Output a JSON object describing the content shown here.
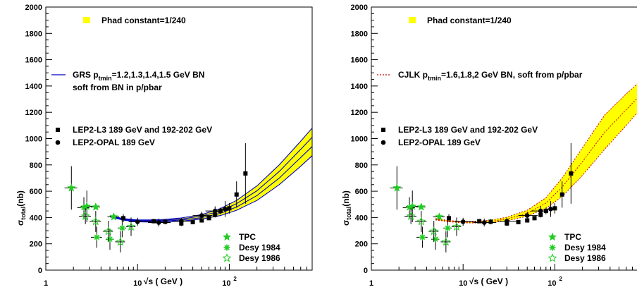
{
  "chart_data": [
    {
      "type": "scatter",
      "xscale": "log",
      "xlim": [
        1,
        800
      ],
      "ylim": [
        0,
        2000
      ],
      "xticks": [
        {
          "v": 1,
          "label": "1"
        },
        {
          "v": 10,
          "label": "10"
        },
        {
          "v": 100,
          "label": "10",
          "sup": "2"
        }
      ],
      "yticks": [
        0,
        200,
        400,
        600,
        800,
        1000,
        1200,
        1400,
        1600,
        1800,
        2000
      ],
      "xlabel": "√s ( GeV )",
      "ylabel": "σ",
      "ylabel_sub": "total",
      "ylabel_unit": "(nb)",
      "band": {
        "label": "Phad constant=1/240",
        "color": "#ffff00",
        "x": [
          5,
          7,
          10,
          15,
          20,
          30,
          50,
          80,
          120,
          200,
          350,
          600,
          800
        ],
        "lower": [
          405,
          380,
          368,
          365,
          367,
          372,
          388,
          415,
          455,
          530,
          650,
          790,
          870
        ],
        "upper": [
          415,
          392,
          382,
          382,
          386,
          397,
          422,
          468,
          530,
          640,
          800,
          980,
          1080
        ]
      },
      "model": {
        "label": "GRS p",
        "label_sub": "tmin",
        "label_rest": "=1.2,1.3,1.4,1.5 GeV BN",
        "label_line2": "soft from BN in p/pbar",
        "color": "#0000cc",
        "style": "solid",
        "x": [
          5,
          7,
          10,
          15,
          20,
          30,
          50,
          80,
          120,
          200,
          350,
          600,
          800
        ],
        "curves": [
          [
            405,
            380,
            368,
            365,
            367,
            372,
            388,
            415,
            455,
            530,
            650,
            790,
            870
          ],
          [
            408,
            384,
            373,
            371,
            374,
            381,
            399,
            432,
            480,
            567,
            700,
            856,
            940
          ],
          [
            412,
            388,
            377,
            376,
            380,
            389,
            411,
            450,
            505,
            603,
            750,
            918,
            1010
          ],
          [
            415,
            392,
            382,
            382,
            386,
            397,
            422,
            468,
            530,
            640,
            800,
            980,
            1080
          ]
        ]
      },
      "series": [
        {
          "name": "LEP2-L3 189 GeV and 192-202 GeV",
          "marker": "square",
          "color": "#000000",
          "x": [
            7,
            15,
            20,
            30,
            40,
            50,
            60,
            70,
            80,
            100,
            120,
            150
          ],
          "y": [
            395,
            372,
            368,
            355,
            365,
            378,
            395,
            420,
            450,
            470,
            575,
            735
          ],
          "yerr": [
            30,
            15,
            20,
            20,
            15,
            15,
            15,
            20,
            25,
            40,
            100,
            230
          ],
          "xerr_lo": [
            0,
            0,
            0,
            0,
            0,
            0,
            0,
            0,
            0,
            0,
            0,
            0
          ],
          "xerr_hi": [
            0,
            0,
            0,
            0,
            0,
            0,
            0,
            0,
            0,
            0,
            0,
            0
          ]
        },
        {
          "name": "LEP2-OPAL 189 GeV",
          "marker": "circle",
          "color": "#000000",
          "x": [
            10,
            17,
            30,
            50,
            70,
            90
          ],
          "y": [
            368,
            362,
            372,
            415,
            450,
            465
          ],
          "yerr": [
            30,
            30,
            25,
            30,
            35,
            60
          ],
          "xerr_lo": [
            2,
            4,
            6,
            10,
            15,
            10
          ],
          "xerr_hi": [
            4,
            6,
            10,
            15,
            15,
            10
          ]
        },
        {
          "name": "TPC",
          "marker": "star",
          "color": "#22cc22",
          "x": [
            1.9,
            2.8,
            3.5,
            5.5
          ],
          "y": [
            625,
            485,
            480,
            405
          ],
          "yerr": [
            165,
            120,
            0,
            0
          ],
          "xerr_lo": [
            0.3,
            0.4,
            0.4,
            0.8
          ],
          "xerr_hi": [
            0.3,
            0.4,
            0.4,
            0.8
          ]
        },
        {
          "name": "Desy 1984",
          "marker": "asterisk",
          "color": "#22cc22",
          "x": [
            2.6,
            3.6,
            5.0,
            6.8
          ],
          "y": [
            475,
            250,
            235,
            320
          ],
          "yerr": [
            80,
            80,
            80,
            70
          ],
          "xerr_lo": [
            0.4,
            0.5,
            0.5,
            0.7
          ],
          "xerr_hi": [
            0.4,
            0.5,
            0.5,
            0.7
          ]
        },
        {
          "name": "Desy 1986",
          "marker": "openstar",
          "color": "#22cc22",
          "x": [
            2.7,
            3.5,
            4.8,
            6.5,
            8.5
          ],
          "y": [
            410,
            370,
            295,
            215,
            330
          ],
          "yerr": [
            60,
            80,
            80,
            80,
            70
          ],
          "xerr_lo": [
            0.4,
            0.5,
            0.6,
            0.8,
            1.0
          ],
          "xerr_hi": [
            0.4,
            0.5,
            0.6,
            0.8,
            1.0
          ]
        }
      ]
    },
    {
      "type": "scatter",
      "xscale": "log",
      "xlim": [
        1,
        800
      ],
      "ylim": [
        0,
        2000
      ],
      "xticks": [
        {
          "v": 1,
          "label": "1"
        },
        {
          "v": 10,
          "label": "10"
        },
        {
          "v": 100,
          "label": "10",
          "sup": "2"
        }
      ],
      "yticks": [
        0,
        200,
        400,
        600,
        800,
        1000,
        1200,
        1400,
        1600,
        1800,
        2000
      ],
      "xlabel": "√s ( GeV )",
      "ylabel": "σ",
      "ylabel_sub": "total",
      "ylabel_unit": "(nb)",
      "band": {
        "label": "Phad constant=1/240",
        "color": "#ffff00",
        "x": [
          5,
          7,
          10,
          15,
          20,
          30,
          50,
          80,
          120,
          200,
          350,
          600,
          800
        ],
        "lower": [
          382,
          368,
          360,
          358,
          362,
          375,
          410,
          470,
          560,
          720,
          920,
          1100,
          1200
        ],
        "upper": [
          392,
          377,
          370,
          372,
          380,
          402,
          455,
          550,
          700,
          930,
          1180,
          1340,
          1420
        ]
      },
      "model": {
        "label": "CJLK p",
        "label_sub": "tmin",
        "label_rest": "=1.6,1.8,2 GeV BN, soft from p/pbar",
        "label_line2": "",
        "color": "#cc0000",
        "style": "dotted",
        "x": [
          5,
          7,
          10,
          15,
          20,
          30,
          50,
          80,
          120,
          200,
          350,
          600,
          800
        ],
        "curves": [
          [
            382,
            368,
            360,
            358,
            362,
            375,
            410,
            470,
            560,
            720,
            920,
            1100,
            1200
          ],
          [
            387,
            372,
            365,
            365,
            371,
            388,
            432,
            510,
            630,
            825,
            1050,
            1220,
            1310
          ],
          [
            392,
            377,
            370,
            372,
            380,
            402,
            455,
            550,
            700,
            930,
            1180,
            1340,
            1420
          ]
        ]
      },
      "series": [
        {
          "name": "LEP2-L3 189 GeV and 192-202 GeV",
          "marker": "square",
          "color": "#000000",
          "x": [
            7,
            15,
            20,
            30,
            40,
            50,
            60,
            70,
            80,
            100,
            120,
            150
          ],
          "y": [
            395,
            372,
            368,
            355,
            365,
            378,
            395,
            420,
            450,
            470,
            575,
            735
          ],
          "yerr": [
            30,
            15,
            20,
            20,
            15,
            15,
            15,
            20,
            25,
            40,
            100,
            230
          ],
          "xerr_lo": [
            0,
            0,
            0,
            0,
            0,
            0,
            0,
            0,
            0,
            0,
            0,
            0
          ],
          "xerr_hi": [
            0,
            0,
            0,
            0,
            0,
            0,
            0,
            0,
            0,
            0,
            0,
            0
          ]
        },
        {
          "name": "LEP2-OPAL 189 GeV",
          "marker": "circle",
          "color": "#000000",
          "x": [
            10,
            17,
            30,
            50,
            70,
            90
          ],
          "y": [
            368,
            362,
            372,
            415,
            450,
            465
          ],
          "yerr": [
            30,
            30,
            25,
            30,
            35,
            60
          ],
          "xerr_lo": [
            2,
            4,
            6,
            10,
            15,
            10
          ],
          "xerr_hi": [
            4,
            6,
            10,
            15,
            15,
            10
          ]
        },
        {
          "name": "TPC",
          "marker": "star",
          "color": "#22cc22",
          "x": [
            1.9,
            2.8,
            3.5,
            5.5
          ],
          "y": [
            625,
            485,
            480,
            405
          ],
          "yerr": [
            165,
            120,
            0,
            0
          ],
          "xerr_lo": [
            0.3,
            0.4,
            0.4,
            0.8
          ],
          "xerr_hi": [
            0.3,
            0.4,
            0.4,
            0.8
          ]
        },
        {
          "name": "Desy 1984",
          "marker": "asterisk",
          "color": "#22cc22",
          "x": [
            2.6,
            3.6,
            5.0,
            6.8
          ],
          "y": [
            475,
            250,
            235,
            320
          ],
          "yerr": [
            80,
            80,
            80,
            70
          ],
          "xerr_lo": [
            0.4,
            0.5,
            0.5,
            0.7
          ],
          "xerr_hi": [
            0.4,
            0.5,
            0.5,
            0.7
          ]
        },
        {
          "name": "Desy 1986",
          "marker": "openstar",
          "color": "#22cc22",
          "x": [
            2.7,
            3.5,
            4.8,
            6.5,
            8.5
          ],
          "y": [
            410,
            370,
            295,
            215,
            330
          ],
          "yerr": [
            60,
            80,
            80,
            80,
            70
          ],
          "xerr_lo": [
            0.4,
            0.5,
            0.6,
            0.8,
            1.0
          ],
          "xerr_hi": [
            0.4,
            0.5,
            0.6,
            0.8,
            1.0
          ]
        }
      ]
    }
  ]
}
